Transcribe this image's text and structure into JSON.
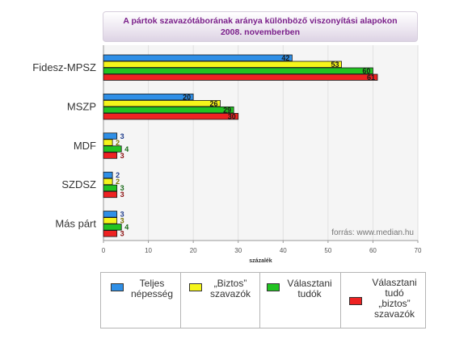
{
  "title_lines": [
    "A pártok szavazótáborának aránya különböző viszonyítási alapokon",
    "2008. novemberben"
  ],
  "source_note": "forrás: www.median.hu",
  "chart_data": {
    "type": "bar",
    "orientation": "horizontal",
    "categories": [
      "Fidesz-MPSZ",
      "MSZP",
      "MDF",
      "SZDSZ",
      "Más párt"
    ],
    "series": [
      {
        "name": "Teljes népesség",
        "color": "#2f8fe6",
        "values": [
          42,
          20,
          3,
          2,
          3
        ]
      },
      {
        "name": "„Biztos” szavazók",
        "color": "#f5f51a",
        "values": [
          53,
          26,
          2,
          2,
          3
        ]
      },
      {
        "name": "Választani tudók",
        "color": "#22c322",
        "values": [
          60,
          29,
          4,
          3,
          4
        ]
      },
      {
        "name": "Választani tudó „biztos” szavazók",
        "color": "#ee2222",
        "values": [
          61,
          30,
          3,
          3,
          3
        ]
      }
    ],
    "xlabel": "százalék",
    "xlim": [
      0,
      70
    ],
    "xticks": [
      0,
      10,
      20,
      30,
      40,
      50,
      60,
      70
    ],
    "grid": true,
    "legend_position": "bottom"
  },
  "legend": [
    {
      "label": "Teljes\nnépesség"
    },
    {
      "label": "„Biztos”\nszavazók"
    },
    {
      "label": "Választani\ntudók"
    },
    {
      "label": "Választani\ntudó\n„biztos”\nszavazók"
    }
  ]
}
